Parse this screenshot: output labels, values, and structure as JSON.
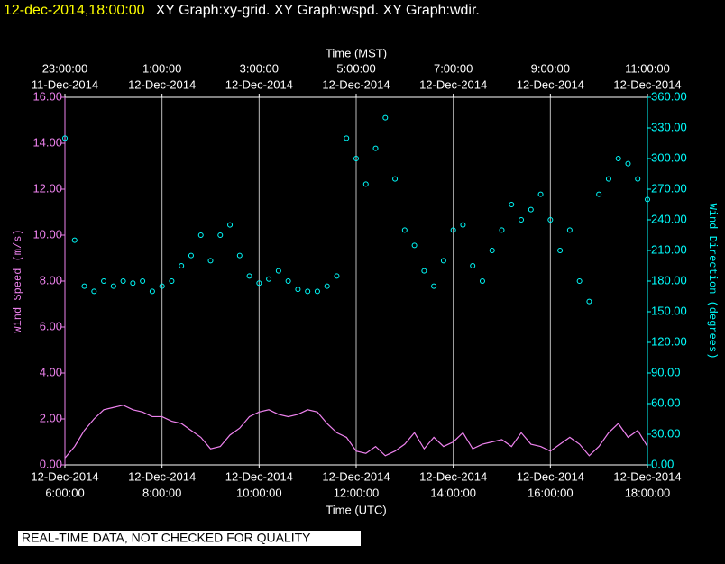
{
  "chart_data": {
    "type": "line-scatter",
    "timestamp": "12-dec-2014,18:00:00",
    "title": "XY Graph:xy-grid.  XY Graph:wspd.  XY Graph:wdir.",
    "x_label": "Time (UTC)",
    "x2_label": "Time (MST)",
    "y_label": "Wind Speed (m/s)",
    "y2_label": "Wind Direction (degrees)",
    "footer": "REAL-TIME DATA, NOT CHECKED FOR QUALITY",
    "grid": true,
    "xlim": [
      6,
      18
    ],
    "xticks": [
      {
        "value": 6,
        "label": "6:00:00",
        "date": "12-Dec-2014"
      },
      {
        "value": 8,
        "label": "8:00:00",
        "date": "12-Dec-2014"
      },
      {
        "value": 10,
        "label": "10:00:00",
        "date": "12-Dec-2014"
      },
      {
        "value": 12,
        "label": "12:00:00",
        "date": "12-Dec-2014"
      },
      {
        "value": 14,
        "label": "14:00:00",
        "date": "12-Dec-2014"
      },
      {
        "value": 16,
        "label": "16:00:00",
        "date": "12-Dec-2014"
      },
      {
        "value": 18,
        "label": "18:00:00",
        "date": "12-Dec-2014"
      }
    ],
    "x2lim": [
      23,
      35
    ],
    "x2ticks": [
      {
        "value": 23,
        "label": "23:00:00",
        "date": "11-Dec-2014"
      },
      {
        "value": 25,
        "label": "1:00:00",
        "date": "12-Dec-2014"
      },
      {
        "value": 27,
        "label": "3:00:00",
        "date": "12-Dec-2014"
      },
      {
        "value": 29,
        "label": "5:00:00",
        "date": "12-Dec-2014"
      },
      {
        "value": 31,
        "label": "7:00:00",
        "date": "12-Dec-2014"
      },
      {
        "value": 33,
        "label": "9:00:00",
        "date": "12-Dec-2014"
      },
      {
        "value": 35,
        "label": "11:00:00",
        "date": "12-Dec-2014"
      }
    ],
    "ylim": [
      0,
      16
    ],
    "yticks": [
      {
        "value": 0,
        "label": "0.00"
      },
      {
        "value": 2,
        "label": "2.00"
      },
      {
        "value": 4,
        "label": "4.00"
      },
      {
        "value": 6,
        "label": "6.00"
      },
      {
        "value": 8,
        "label": "8.00"
      },
      {
        "value": 10,
        "label": "10.00"
      },
      {
        "value": 12,
        "label": "12.00"
      },
      {
        "value": 14,
        "label": "14.00"
      },
      {
        "value": 16,
        "label": "16.00"
      }
    ],
    "y2lim": [
      0,
      360
    ],
    "y2ticks": [
      {
        "value": 0,
        "label": "0.00"
      },
      {
        "value": 30,
        "label": "30.00"
      },
      {
        "value": 60,
        "label": "60.00"
      },
      {
        "value": 90,
        "label": "90.00"
      },
      {
        "value": 120,
        "label": "120.00"
      },
      {
        "value": 150,
        "label": "150.00"
      },
      {
        "value": 180,
        "label": "180.00"
      },
      {
        "value": 210,
        "label": "210.00"
      },
      {
        "value": 240,
        "label": "240.00"
      },
      {
        "value": 270,
        "label": "270.00"
      },
      {
        "value": 300,
        "label": "300.00"
      },
      {
        "value": 330,
        "label": "330.00"
      },
      {
        "value": 360,
        "label": "360.00"
      }
    ],
    "x": [
      6.0,
      6.2,
      6.4,
      6.6,
      6.8,
      7.0,
      7.2,
      7.4,
      7.6,
      7.8,
      8.0,
      8.2,
      8.4,
      8.6,
      8.8,
      9.0,
      9.2,
      9.4,
      9.6,
      9.8,
      10.0,
      10.2,
      10.4,
      10.6,
      10.8,
      11.0,
      11.2,
      11.4,
      11.6,
      11.8,
      12.0,
      12.2,
      12.4,
      12.6,
      12.8,
      13.0,
      13.2,
      13.4,
      13.6,
      13.8,
      14.0,
      14.2,
      14.4,
      14.6,
      14.8,
      15.0,
      15.2,
      15.4,
      15.6,
      15.8,
      16.0,
      16.2,
      16.4,
      16.6,
      16.8,
      17.0,
      17.2,
      17.4,
      17.6,
      17.8,
      18.0
    ],
    "series": [
      {
        "name": "wspd",
        "mark": "line",
        "color": "#ee82ee",
        "values": [
          0.3,
          0.8,
          1.5,
          2.0,
          2.4,
          2.5,
          2.6,
          2.4,
          2.3,
          2.1,
          2.1,
          1.9,
          1.8,
          1.5,
          1.2,
          0.7,
          0.8,
          1.3,
          1.6,
          2.1,
          2.3,
          2.4,
          2.2,
          2.1,
          2.2,
          2.4,
          2.3,
          1.8,
          1.4,
          1.2,
          0.6,
          0.5,
          0.8,
          0.4,
          0.6,
          0.9,
          1.4,
          0.7,
          1.2,
          0.8,
          1.0,
          1.4,
          0.7,
          0.9,
          1.0,
          1.1,
          0.8,
          1.4,
          0.9,
          0.8,
          0.6,
          0.9,
          1.2,
          0.9,
          0.4,
          0.8,
          1.4,
          1.8,
          1.2,
          1.5,
          0.8
        ]
      },
      {
        "name": "wdir",
        "mark": "circle",
        "color": "#00ffff",
        "axis": "y2",
        "values": [
          320,
          220,
          175,
          170,
          180,
          175,
          180,
          178,
          180,
          170,
          175,
          180,
          195,
          205,
          225,
          200,
          225,
          235,
          205,
          185,
          178,
          182,
          190,
          180,
          172,
          170,
          170,
          175,
          185,
          320,
          300,
          275,
          310,
          340,
          280,
          230,
          215,
          190,
          175,
          200,
          230,
          235,
          195,
          180,
          210,
          230,
          255,
          240,
          250,
          265,
          240,
          210,
          230,
          180,
          160,
          265,
          280,
          300,
          295,
          280,
          260
        ]
      }
    ]
  }
}
